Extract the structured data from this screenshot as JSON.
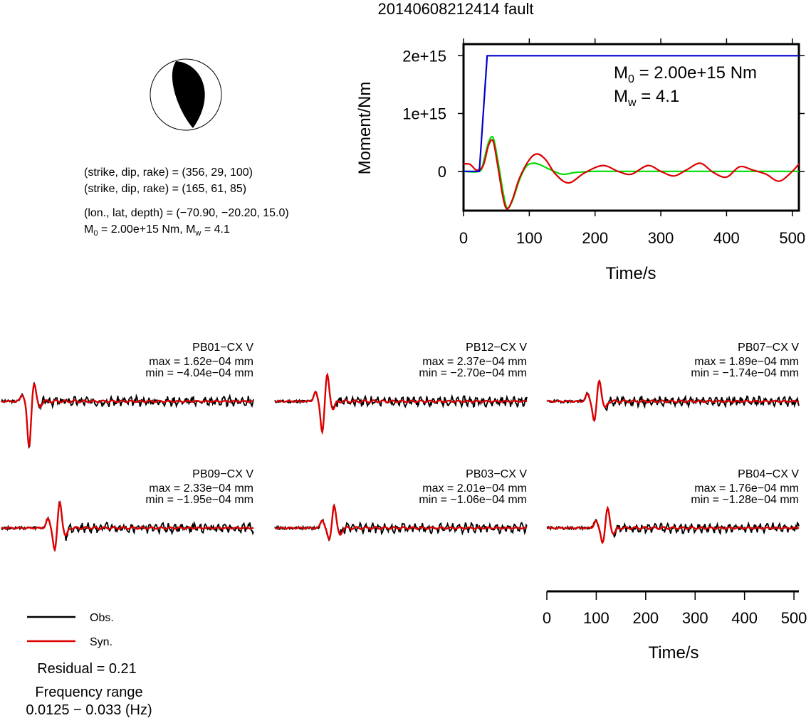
{
  "title": "20140608212414 fault",
  "focal": {
    "line1": "(strike, dip, rake) = (356, 29, 100)",
    "line2": "(strike, dip, rake) = (165, 61, 85)",
    "line3": "(lon., lat, depth) = (−70.90, −20.20, 15.0)",
    "m0_prefix": "M",
    "m0_sub": "0",
    "m0_rest": " = 2.00e+15 Nm, M",
    "mw_sub": "w",
    "mw_rest": " = 4.1"
  },
  "moment_plot": {
    "ylabel": "Moment/Nm",
    "xlabel": "Time/s",
    "xlim": [
      0,
      510
    ],
    "ylim": [
      -680000000000000.0,
      2200000000000000.0
    ],
    "xticks": [
      "0",
      "100",
      "200",
      "300",
      "400",
      "500"
    ],
    "xtick_values": [
      0,
      100,
      200,
      300,
      400,
      500
    ],
    "yticks": [
      "0",
      "1e+15",
      "2e+15"
    ],
    "ytick_values": [
      0,
      1000000000000000.0,
      2000000000000000.0
    ],
    "ann_m0_prefix": "M",
    "ann_m0_sub": "0",
    "ann_m0_rest": " = 2.00e+15 Nm",
    "ann_mw_prefix": "M",
    "ann_mw_sub": "w",
    "ann_mw_rest": " = 4.1",
    "colors": {
      "cumulative": "#0000cc",
      "rate_inverted": "#dd0000",
      "rate_smooth": "#00dd00"
    }
  },
  "chart_data": [
    {
      "type": "line",
      "title": "",
      "xlabel": "Time/s",
      "ylabel": "Moment/Nm",
      "xlim": [
        0,
        510
      ],
      "ylim": [
        -680000000000000.0,
        2200000000000000.0
      ],
      "series": [
        {
          "color": "blue",
          "x": [
            0,
            24,
            36,
            510
          ],
          "y": [
            0,
            0,
            2000000000000000.0,
            2000000000000000.0
          ]
        },
        {
          "color": "red",
          "x": [
            0,
            10,
            20,
            30,
            38,
            45,
            52,
            60,
            66,
            74,
            85,
            100,
            112,
            125,
            140,
            160,
            185,
            212,
            235,
            255,
            280,
            300,
            320,
            340,
            360,
            380,
            400,
            420,
            440,
            460,
            480,
            500,
            510
          ],
          "y": [
            130000000000000.0,
            120000000000000.0,
            20000000000000.0,
            100000000000000.0,
            450000000000000.0,
            520000000000000.0,
            100000000000000.0,
            -450000000000000.0,
            -650000000000000.0,
            -500000000000000.0,
            -120000000000000.0,
            200000000000000.0,
            300000000000000.0,
            200000000000000.0,
            -50000000000000.0,
            -200000000000000.0,
            -20000000000000.0,
            100000000000000.0,
            0.0,
            -50000000000000.0,
            100000000000000.0,
            0.0,
            -80000000000000.0,
            30000000000000.0,
            140000000000000.0,
            -20000000000000.0,
            -100000000000000.0,
            80000000000000.0,
            20000000000000.0,
            -50000000000000.0,
            -170000000000000.0,
            0.0,
            130000000000000.0
          ]
        },
        {
          "color": "green",
          "x": [
            0,
            24,
            30,
            38,
            45,
            52,
            60,
            66,
            74,
            85,
            95,
            105,
            115,
            130,
            150,
            170,
            200,
            250,
            510
          ],
          "y": [
            0,
            0,
            150000000000000.0,
            500000000000000.0,
            580000000000000.0,
            200000000000000.0,
            -350000000000000.0,
            -630000000000000.0,
            -520000000000000.0,
            -150000000000000.0,
            80000000000000.0,
            140000000000000.0,
            120000000000000.0,
            40000000000000.0,
            -50000000000000.0,
            -20000000000000.0,
            0.0,
            0.0,
            0.0
          ]
        }
      ]
    },
    {
      "type": "line",
      "title": "",
      "xlabel": "Time/s",
      "ylabel": "",
      "xlim": [
        0,
        510
      ],
      "xticks": [
        0,
        100,
        200,
        300,
        400,
        500
      ],
      "stations": [
        {
          "name": "PB01−CX V",
          "max": "max = 1.62e−04 mm",
          "min": "min = −4.04e−04 mm",
          "peak_time": 58,
          "max_val": 1.62,
          "min_val": -4.04,
          "seed": 3
        },
        {
          "name": "PB12−CX V",
          "max": "max = 2.37e−04 mm",
          "min": "min = −2.70e−04 mm",
          "peak_time": 98,
          "max_val": 2.37,
          "min_val": -2.7,
          "seed": 11
        },
        {
          "name": "PB07−CX V",
          "max": "max = 1.89e−04 mm",
          "min": "min = −1.74e−04 mm",
          "peak_time": 98,
          "max_val": 1.89,
          "min_val": -1.74,
          "seed": 19
        },
        {
          "name": "PB09−CX V",
          "max": "max = 2.33e−04 mm",
          "min": "min = −1.95e−04 mm",
          "peak_time": 110,
          "max_val": 2.33,
          "min_val": -1.95,
          "seed": 27
        },
        {
          "name": "PB03−CX V",
          "max": "max = 2.01e−04 mm",
          "min": "min = −1.06e−04 mm",
          "peak_time": 112,
          "max_val": 2.01,
          "min_val": -1.06,
          "seed": 35
        },
        {
          "name": "PB04−CX V",
          "max": "max = 1.76e−04 mm",
          "min": "min = −1.28e−04 mm",
          "peak_time": 115,
          "max_val": 1.76,
          "min_val": -1.28,
          "seed": 43
        }
      ]
    }
  ],
  "waveform_axis": {
    "xlabel": "Time/s",
    "xticks": [
      "0",
      "100",
      "200",
      "300",
      "400",
      "500"
    ],
    "xtick_values": [
      0,
      100,
      200,
      300,
      400,
      500
    ]
  },
  "legend": {
    "obs": "Obs.",
    "syn": "Syn.",
    "obs_color": "#000000",
    "syn_color": "#dd0000"
  },
  "residual": "Residual = 0.21",
  "freq_label": "Frequency range",
  "freq_range": "0.0125 − 0.033 (Hz)"
}
